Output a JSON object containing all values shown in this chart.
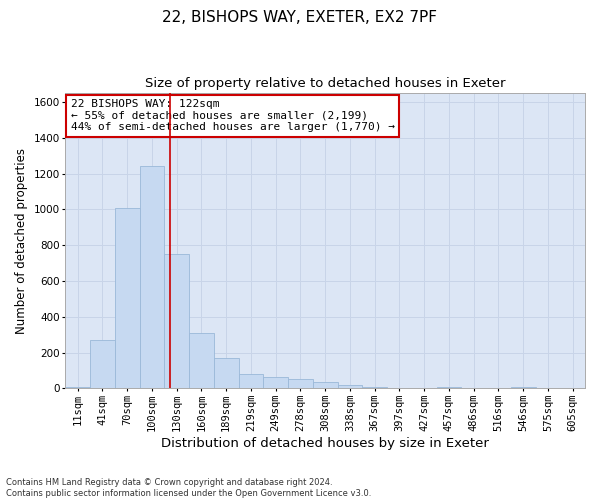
{
  "title1": "22, BISHOPS WAY, EXETER, EX2 7PF",
  "title2": "Size of property relative to detached houses in Exeter",
  "xlabel": "Distribution of detached houses by size in Exeter",
  "ylabel": "Number of detached properties",
  "bin_labels": [
    "11sqm",
    "41sqm",
    "70sqm",
    "100sqm",
    "130sqm",
    "160sqm",
    "189sqm",
    "219sqm",
    "249sqm",
    "278sqm",
    "308sqm",
    "338sqm",
    "367sqm",
    "397sqm",
    "427sqm",
    "457sqm",
    "486sqm",
    "516sqm",
    "546sqm",
    "575sqm",
    "605sqm"
  ],
  "bin_values": [
    10,
    270,
    1010,
    1240,
    750,
    310,
    170,
    80,
    65,
    50,
    35,
    20,
    10,
    0,
    0,
    10,
    0,
    0,
    10,
    0,
    0
  ],
  "bar_color": "#c6d9f1",
  "bar_edge_color": "#9ab8d8",
  "vline_color": "#cc0000",
  "annotation_text": "22 BISHOPS WAY: 122sqm\n← 55% of detached houses are smaller (2,199)\n44% of semi-detached houses are larger (1,770) →",
  "annotation_box_color": "#ffffff",
  "annotation_box_edge_color": "#cc0000",
  "ylim": [
    0,
    1650
  ],
  "yticks": [
    0,
    200,
    400,
    600,
    800,
    1000,
    1200,
    1400,
    1600
  ],
  "grid_color": "#c8d4e8",
  "background_color": "#dce6f5",
  "footer_text": "Contains HM Land Registry data © Crown copyright and database right 2024.\nContains public sector information licensed under the Open Government Licence v3.0.",
  "title1_fontsize": 11,
  "title2_fontsize": 9.5,
  "xlabel_fontsize": 9.5,
  "ylabel_fontsize": 8.5,
  "annotation_fontsize": 8,
  "tick_fontsize": 7.5
}
